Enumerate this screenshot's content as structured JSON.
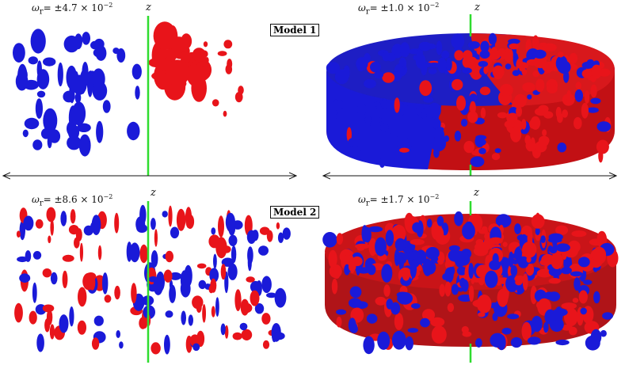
{
  "panels": [
    {
      "id": "m1-left",
      "omega_symbol": "ω",
      "omega_sub": "r",
      "omega_value": "= ±4.7 × 10",
      "omega_exp": "−2",
      "axis": "z"
    },
    {
      "id": "m1-right",
      "omega_symbol": "ω",
      "omega_sub": "r",
      "omega_value": "= ±1.0 × 10",
      "omega_exp": "−2",
      "axis": "z"
    },
    {
      "id": "m2-left",
      "omega_symbol": "ω",
      "omega_sub": "r",
      "omega_value": "= ±8.6 × 10",
      "omega_exp": "−2",
      "axis": "z"
    },
    {
      "id": "m2-right",
      "omega_symbol": "ω",
      "omega_sub": "r",
      "omega_value": "= ±1.7 × 10",
      "omega_exp": "−2",
      "axis": "z"
    }
  ],
  "models": [
    "Model 1",
    "Model 2"
  ],
  "colors": {
    "positive": "#e8141a",
    "negative": "#1a1ad8",
    "axis": "#2fdc2f"
  }
}
